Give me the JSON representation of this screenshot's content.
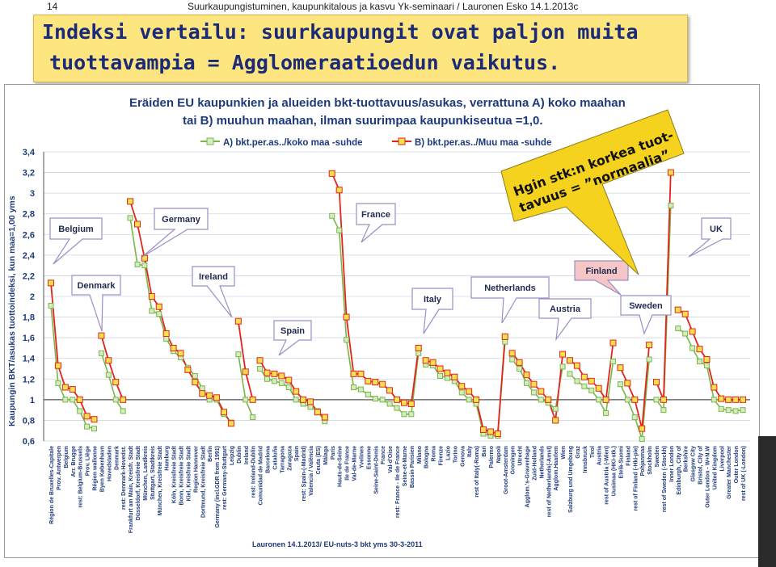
{
  "slide": {
    "page_number": "14",
    "header_text": "Suurkaupungistuminen, kaupunkitalous ja kasvu Yk-seminaari / Lauronen Esko 14.1.2013c",
    "headline_line1": "Indeksi vertailu: suurkaupungit ovat paljon muita",
    "headline_line2": "tuottavampia = Agglomeraatioedun vaikutus.",
    "colors": {
      "headline_bg": "#fde680",
      "headline_text": "#1a2a78",
      "series_a": "#7ab648",
      "series_b": "#e2241b",
      "callout": "#f5d21e"
    }
  },
  "chart_data": {
    "type": "line",
    "title_line1": "Eräiden EU kaupunkien ja alueiden bkt-tuottavuus/asukas, verrattuna A) koko maahan",
    "title_line2": "tai B) muuhun maahan, ilman suurimpaa kaupunkiseutua =1,0.",
    "ylabel": "Kaupungin BKT/asukas tuottoindeksi, kun maa=1,00 yms",
    "source": "Lauronen 14.1.2013/ EU-nuts-3 bkt yms 30-3-2011",
    "ylim": [
      0.6,
      3.4
    ],
    "yticks": [
      "0,6",
      "0,8",
      "1",
      "1,2",
      "1,4",
      "1,6",
      "1,8",
      "2",
      "2,2",
      "2,4",
      "2,6",
      "2,8",
      "3",
      "3,2",
      "3,4"
    ],
    "grid": true,
    "legend_position": "top",
    "categories": [
      "Région de Bruxelles-Capitale",
      "Prov. Antwerpen",
      "Belgium",
      "Arr. Brugge",
      "rest: Belgium-Brussels",
      "Prov. Liège",
      "Région wallonne",
      "Byen København",
      "Hovedstaden",
      "Denmark",
      "rest: Denmark-Hovedst.",
      "Frankfurt am Main, Kreisfr. Stadt",
      "Düsseldorf, Kreisfreie Stadt",
      "München, Landkreis",
      "Stuttgart, Stadtkreis",
      "München, Kreisfreie Stadt",
      "Hamburg",
      "Köln, Kreisfreie Stadt",
      "Bonn, Kreisfreie Stadt",
      "Kiel, Kreisfreie Stadt",
      "Region Hannover",
      "Dortmund, Kreisfreie Stadt",
      "Berlin",
      "Germany (incl.GDR from 1991)",
      "rest: Germany-Stuttgart",
      "Leipzig",
      "Dublin",
      "Ireland",
      "rest: Ireland-Dublin",
      "Comunidad de Madrid",
      "Barcelona",
      "Cataluña",
      "Tarragona",
      "Zaragoza",
      "Spain",
      "rest: Spain-(-Madrid)",
      "Valencia / València",
      "Ceuta (ES)",
      "Málaga",
      "Paris",
      "Hauts-de-Seine",
      "Ile de France",
      "Val-de-Marne",
      "Yvelines",
      "Essonne",
      "Seine-Saint-Denis",
      "France",
      "Val-d'Oise",
      "rest: France - Ile de France",
      "Seine-et-Marne",
      "Bassin Parisien",
      "Milano",
      "Bologna",
      "Roma",
      "Firenze",
      "Lazio",
      "Torino",
      "Genova",
      "Italy",
      "rest of Italy(-Roma)",
      "Bari",
      "Palermo",
      "Napoli",
      "Groot-Amsterdam",
      "Groningen",
      "Utrecht",
      "Agglom.'s-Gravenhage",
      "Zuid-Holland",
      "Netherlands",
      "rest of Netherlands(-Amst)",
      "Agglom.Haarlem",
      "Wien",
      "Salzburg und Umgebung",
      "Graz",
      "Innsbruck",
      "Tirol",
      "Austria",
      "rest of Austria (-Wien)",
      "Uusimaa (HKI-stk.)",
      "Etelä-Suomi",
      "Finland",
      "rest of Finland (-Hki-pie)",
      "Pohjanmaa",
      "Stockholm",
      "Sweden",
      "rest of Sweden (-Stockh)",
      "Inner London",
      "Edinburgh, City of",
      "Berkshire",
      "Glasgow City",
      "Bristol, City of",
      "Outer London - W+N.W",
      "United Kingdom",
      "Liverpool",
      "Greater Manchester",
      "Outer London",
      "rest of UK (-London)"
    ],
    "groups": [
      {
        "name": "Belgium",
        "start": 0,
        "end": 6
      },
      {
        "name": "Denmark",
        "start": 7,
        "end": 10
      },
      {
        "name": "Germany",
        "start": 11,
        "end": 25
      },
      {
        "name": "Ireland",
        "start": 26,
        "end": 28
      },
      {
        "name": "Spain",
        "start": 29,
        "end": 38
      },
      {
        "name": "France",
        "start": 39,
        "end": 51
      },
      {
        "name": "Italy",
        "start": 52,
        "end": 63
      },
      {
        "name": "Netherlands",
        "start": 64,
        "end": 71
      },
      {
        "name": "Austria",
        "start": 72,
        "end": 78
      },
      {
        "name": "Finland",
        "start": 79,
        "end": 83
      },
      {
        "name": "Sweden",
        "start": 84,
        "end": 86
      },
      {
        "name": "UK",
        "start": 87,
        "end": 97
      }
    ],
    "series": [
      {
        "name": "A) bkt.per.as../koko maa -suhde",
        "color": "#7ab648",
        "values": [
          1.91,
          1.16,
          1.0,
          1.0,
          0.89,
          0.74,
          0.72,
          1.45,
          1.24,
          1.0,
          0.89,
          2.76,
          2.31,
          2.3,
          1.86,
          1.83,
          1.59,
          1.47,
          1.41,
          1.31,
          1.23,
          1.11,
          1.0,
          1.0,
          0.86,
          0.78,
          1.44,
          1.0,
          0.83,
          1.3,
          1.2,
          1.18,
          1.16,
          1.12,
          1.0,
          0.96,
          0.93,
          0.89,
          0.79,
          2.78,
          2.64,
          1.58,
          1.12,
          1.1,
          1.05,
          1.01,
          1.0,
          0.96,
          0.92,
          0.86,
          0.86,
          1.45,
          1.34,
          1.33,
          1.23,
          1.21,
          1.18,
          1.07,
          1.0,
          0.96,
          0.67,
          0.65,
          0.65,
          1.56,
          1.39,
          1.3,
          1.16,
          1.07,
          1.0,
          0.97,
          0.91,
          1.32,
          1.25,
          1.18,
          1.13,
          1.09,
          1.0,
          0.87,
          1.37,
          1.15,
          1.0,
          0.83,
          0.62,
          1.39,
          1.0,
          0.9,
          2.88,
          1.69,
          1.64,
          1.5,
          1.37,
          1.33,
          1.0,
          0.91,
          0.9,
          0.89,
          0.9
        ]
      },
      {
        "name": "B) bkt.per.as../Muu maa -suhde",
        "color": "#e2241b",
        "values": [
          2.13,
          1.33,
          1.12,
          1.1,
          1.0,
          0.84,
          0.81,
          1.62,
          1.38,
          1.17,
          1.0,
          2.92,
          2.7,
          2.37,
          2.0,
          1.9,
          1.64,
          1.5,
          1.45,
          1.29,
          1.17,
          1.06,
          1.04,
          1.02,
          0.88,
          0.77,
          1.76,
          1.27,
          1.0,
          1.38,
          1.26,
          1.25,
          1.23,
          1.19,
          1.08,
          1.0,
          0.98,
          0.88,
          0.83,
          3.19,
          3.03,
          1.8,
          1.25,
          1.25,
          1.18,
          1.17,
          1.15,
          1.09,
          1.0,
          0.97,
          0.96,
          1.5,
          1.38,
          1.36,
          1.3,
          1.26,
          1.22,
          1.13,
          1.08,
          1.0,
          0.71,
          0.69,
          0.67,
          1.61,
          1.45,
          1.36,
          1.24,
          1.15,
          1.08,
          1.0,
          0.8,
          1.44,
          1.38,
          1.33,
          1.22,
          1.18,
          1.11,
          1.0,
          1.55,
          1.31,
          1.16,
          1.0,
          0.72,
          1.53,
          1.17,
          1.0,
          3.2,
          1.87,
          1.83,
          1.66,
          1.49,
          1.39,
          1.12,
          1.01,
          1.0,
          1.0,
          1.0
        ]
      }
    ],
    "annotations": [
      {
        "text_line1": "Hgin stk:n korkea tuot-",
        "text_line2": "tavuus = ”normaalia”"
      }
    ]
  }
}
